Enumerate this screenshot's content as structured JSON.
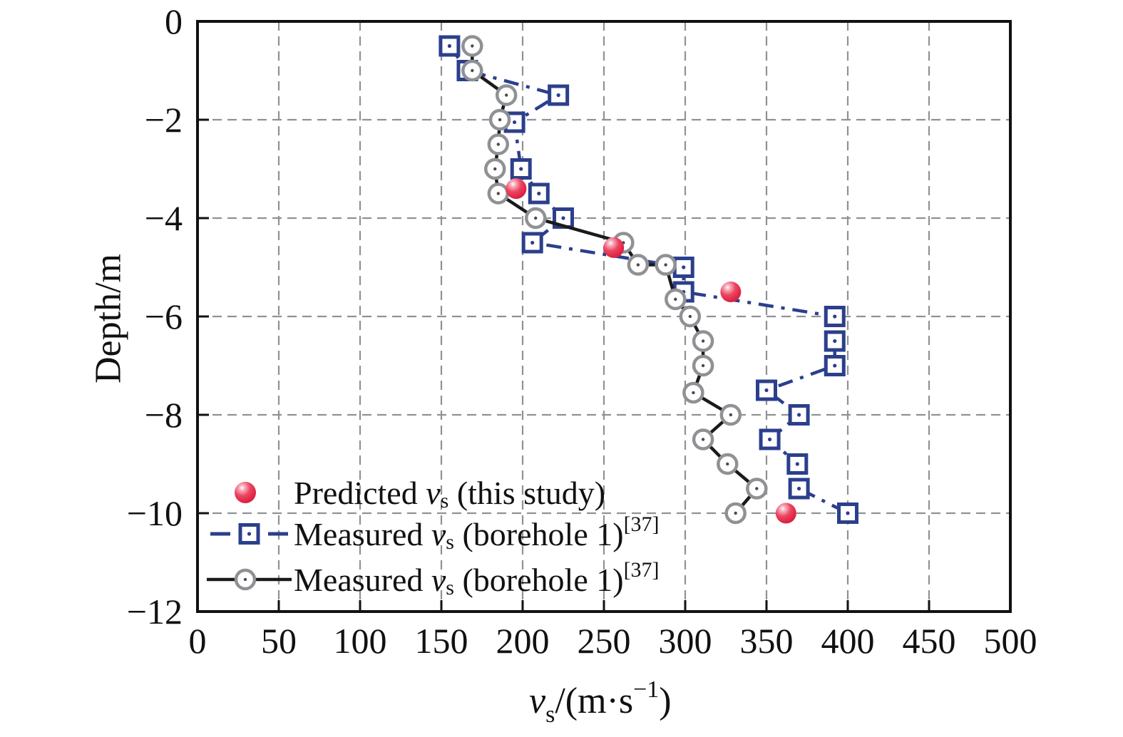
{
  "figure": {
    "background": "#ffffff"
  },
  "colors": {
    "blue_series": "#2b3f8c",
    "gray_marker": "#8f9194",
    "black_line": "#1a1a1a",
    "red_marker": "#e02a49",
    "grid": "#8e9296",
    "frame": "#111111"
  },
  "chart_data": {
    "type": "line",
    "title": "",
    "ylabel": "Depth/m",
    "xlabel_parts": {
      "var": "v",
      "sub": "s",
      "mid": "/(m·s",
      "sup": "−1",
      "end": ")"
    },
    "x_axis": {
      "min": 0,
      "max": 500,
      "tick_step": 50,
      "ticks": [
        {
          "v": 0,
          "label": "0"
        },
        {
          "v": 50,
          "label": "50"
        },
        {
          "v": 100,
          "label": "100"
        },
        {
          "v": 150,
          "label": "150"
        },
        {
          "v": 200,
          "label": "200"
        },
        {
          "v": 250,
          "label": "250"
        },
        {
          "v": 300,
          "label": "300"
        },
        {
          "v": 350,
          "label": "350"
        },
        {
          "v": 400,
          "label": "400"
        },
        {
          "v": 450,
          "label": "450"
        },
        {
          "v": 500,
          "label": "500"
        }
      ]
    },
    "y_axis": {
      "min": -12,
      "max": 0,
      "tick_step": 2,
      "ticks": [
        {
          "v": 0,
          "label": "0"
        },
        {
          "v": -2,
          "label": "−2"
        },
        {
          "v": -4,
          "label": "−4"
        },
        {
          "v": -6,
          "label": "−6"
        },
        {
          "v": -8,
          "label": "−8"
        },
        {
          "v": -10,
          "label": "−10"
        },
        {
          "v": -12,
          "label": "−12"
        }
      ]
    },
    "grid": {
      "style": "dashed",
      "x_values": [
        50,
        100,
        150,
        200,
        250,
        300,
        350,
        400,
        450
      ],
      "y_values": [
        -2,
        -4,
        -6,
        -8,
        -10
      ]
    },
    "series": [
      {
        "id": "measured-borehole-1",
        "name": "Measured vs (borehole 1)[37]",
        "line_style": "dashdot",
        "line_color": "#2b3f8c",
        "marker": "open-square-dot",
        "marker_color": "#2b3f8c",
        "points": [
          [
            155,
            -0.5
          ],
          [
            166,
            -1.0
          ],
          [
            222,
            -1.5
          ],
          [
            195,
            -2.05
          ],
          [
            199,
            -3.0
          ],
          [
            210,
            -3.5
          ],
          [
            225,
            -4.0
          ],
          [
            206,
            -4.5
          ],
          [
            299,
            -5.0
          ],
          [
            299,
            -5.5
          ],
          [
            392,
            -6.0
          ],
          [
            392,
            -6.5
          ],
          [
            392,
            -7.0
          ],
          [
            350,
            -7.5
          ],
          [
            370,
            -8.0
          ],
          [
            352,
            -8.5
          ],
          [
            369,
            -9.0
          ],
          [
            370,
            -9.5
          ],
          [
            400,
            -10.0
          ]
        ]
      },
      {
        "id": "measured-borehole-2",
        "name": "Measured vs (borehole 1)[37]",
        "line_style": "solid",
        "line_color": "#1a1a1a",
        "marker": "open-circle-dot",
        "marker_color": "#8f9194",
        "points": [
          [
            169,
            -0.5
          ],
          [
            169,
            -1.0
          ],
          [
            190,
            -1.5
          ],
          [
            186,
            -2.0
          ],
          [
            185,
            -2.5
          ],
          [
            183,
            -3.0
          ],
          [
            185,
            -3.5
          ],
          [
            208,
            -4.0
          ],
          [
            262,
            -4.5
          ],
          [
            271,
            -4.95
          ],
          [
            288,
            -4.95
          ],
          [
            294,
            -5.65
          ],
          [
            303,
            -6.0
          ],
          [
            311,
            -6.5
          ],
          [
            311,
            -7.0
          ],
          [
            305,
            -7.55
          ],
          [
            328,
            -8.0
          ],
          [
            311,
            -8.5
          ],
          [
            326,
            -9.0
          ],
          [
            344,
            -9.5
          ],
          [
            331,
            -10.0
          ]
        ]
      },
      {
        "id": "predicted-this-study",
        "name": "Predicted vs (this study)",
        "line_style": "none",
        "line_color": "none",
        "marker": "red-ball",
        "marker_color": "#e02a49",
        "points": [
          [
            196,
            -3.4
          ],
          [
            256,
            -4.6
          ],
          [
            328,
            -5.5
          ],
          [
            362,
            -10.0
          ]
        ]
      }
    ]
  },
  "legend": {
    "entries": [
      {
        "pre": "Predicted ",
        "var": "v",
        "sub": "s",
        "post": " (this study)",
        "sup": ""
      },
      {
        "pre": "Measured ",
        "var": "v",
        "sub": "s",
        "post": " (borehole 1)",
        "sup": "[37]"
      },
      {
        "pre": "Measured ",
        "var": "v",
        "sub": "s",
        "post": " (borehole 1)",
        "sup": "[37]"
      }
    ]
  }
}
